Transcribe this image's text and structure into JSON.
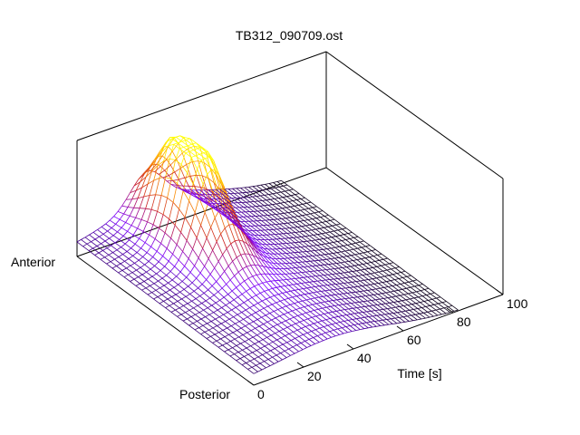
{
  "chart_data": {
    "type": "surface",
    "title": "TB312_090709.ost",
    "x_axis": {
      "label": "Time [s]",
      "range": [
        0,
        100
      ],
      "ticks": [
        0,
        20,
        40,
        60,
        80,
        100
      ]
    },
    "y_axis": {
      "tick_labels": [
        "Anterior",
        "Posterior"
      ]
    },
    "grid": false,
    "surface": {
      "rows": 30,
      "cols": 50,
      "peak_time": 28,
      "peak_position": 0.25,
      "colormap": [
        "#000000",
        "#7a00ff",
        "#cc2222",
        "#ff9900",
        "#ffff00"
      ]
    }
  }
}
